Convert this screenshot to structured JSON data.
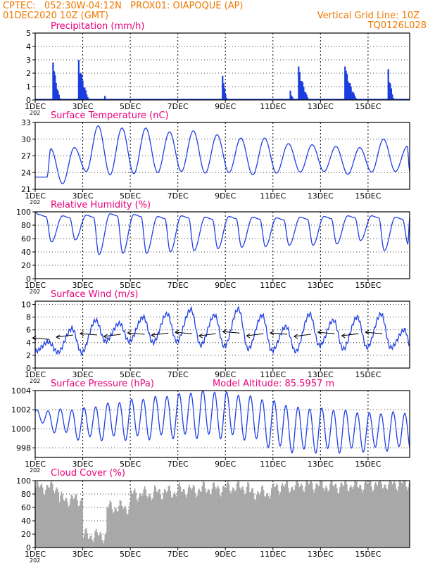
{
  "header": {
    "line1": "CPTEC:   052:30W-04:12N   PROX01: OIAPOQUE (AP)",
    "line2_left": "01DEC2020 10Z (GMT)",
    "line2_right": "Vertical Grid Line: 10Z",
    "line3_right": "TQ0126L028",
    "model_altitude": "Model Altitude: 85.5957 m"
  },
  "colors": {
    "header": "#f07800",
    "title": "#e8007a",
    "line": "#1f3fe6",
    "bar": "#1a3de0",
    "cloud": "#a8a8a8",
    "wind": "#000000"
  },
  "x_axis": {
    "ticks": [
      "1DEC",
      "3DEC",
      "5DEC",
      "7DEC",
      "9DEC",
      "11DEC",
      "13DEC",
      "15DEC"
    ],
    "year": "202"
  },
  "chart_data": [
    {
      "type": "bar",
      "title": "Precipitation (mm/h)",
      "ylim": [
        0,
        5
      ],
      "yticks": [
        "0",
        "1",
        "2",
        "3",
        "4",
        "5"
      ],
      "events": [
        {
          "start": 0.72,
          "peak": 2.8,
          "dur": 0.35
        },
        {
          "start": 1.8,
          "peak": 3.0,
          "dur": 0.45
        },
        {
          "start": 2.9,
          "peak": 0.3,
          "dur": 0.05
        },
        {
          "start": 7.85,
          "peak": 1.8,
          "dur": 0.22
        },
        {
          "start": 10.7,
          "peak": 0.7,
          "dur": 0.15
        },
        {
          "start": 11.05,
          "peak": 2.5,
          "dur": 0.45
        },
        {
          "start": 13.0,
          "peak": 2.5,
          "dur": 0.55
        },
        {
          "start": 14.82,
          "peak": 2.3,
          "dur": 0.25
        }
      ]
    },
    {
      "type": "line",
      "title": "Surface Temperature (nC)",
      "ylim": [
        21,
        33
      ],
      "yticks": [
        "21",
        "24",
        "27",
        "30",
        "33"
      ],
      "base": 23.2,
      "peaks": [
        28.3,
        28.5,
        32.4,
        32.0,
        32.0,
        31.3,
        31.5,
        30.8,
        30.2,
        30.2,
        29.2,
        29.0,
        28.7,
        28.5,
        30.0,
        28.7
      ],
      "mins": [
        22.0,
        24.2,
        23.6,
        23.8,
        24.0,
        24.2,
        23.9,
        24.0,
        23.6,
        23.9,
        24.1,
        24.2,
        23.7,
        24.1,
        24.2,
        24.0
      ]
    },
    {
      "type": "line",
      "title": "Relative Humidity (%)",
      "ylim": [
        0,
        100
      ],
      "yticks": [
        "0",
        "20",
        "40",
        "60",
        "80",
        "100"
      ],
      "highs": [
        96,
        94,
        95,
        97,
        96,
        93,
        94,
        92,
        93,
        92,
        91,
        92,
        93,
        94,
        94,
        92
      ],
      "lows": [
        55,
        58,
        36,
        38,
        38,
        40,
        42,
        45,
        47,
        48,
        50,
        50,
        52,
        57,
        42,
        52
      ]
    },
    {
      "type": "line",
      "title": "Surface Wind (m/s)",
      "ylim": [
        0,
        10.5
      ],
      "yticks": [
        "0",
        "2",
        "4",
        "6",
        "8",
        "10"
      ],
      "peaks": [
        4.1,
        6.2,
        7.5,
        7.0,
        8.0,
        8.5,
        9.2,
        8.3,
        9.3,
        8.3,
        6.5,
        8.5,
        7.5,
        8.0,
        8.5,
        6.0
      ],
      "mins": [
        2.5,
        2.4,
        4.2,
        4.2,
        4.0,
        4.2,
        3.6,
        3.4,
        3.0,
        2.7,
        2.6,
        3.5,
        3.0,
        3.2,
        3.2,
        4.0
      ],
      "arrow_y": [
        4.5,
        5.2,
        5.2,
        5.3,
        5.3,
        5.5,
        5.4,
        5.4,
        5.5,
        5.4,
        5.3,
        5.3,
        5.4,
        5.4,
        5.4
      ]
    },
    {
      "type": "line",
      "title": "Surface Pressure (hPa)",
      "ylim": [
        997,
        1004
      ],
      "yticks": [
        "998",
        "1000",
        "1002",
        "1004"
      ],
      "mean": [
        1001.3,
        1000.8,
        1000.5,
        1000.8,
        1001.0,
        1001.2,
        1001.4,
        1001.6,
        1001.5,
        1001.2,
        1000.5,
        999.9,
        999.9,
        999.8,
        999.7,
        999.8
      ],
      "amp": [
        0.6,
        1.2,
        1.6,
        1.8,
        2.0,
        2.1,
        2.2,
        2.4,
        2.3,
        2.2,
        2.4,
        2.3,
        2.2,
        2.1,
        1.9,
        1.9
      ]
    },
    {
      "type": "bar",
      "title": "Cloud Cover (%)",
      "ylim": [
        0,
        100
      ],
      "yticks": [
        "0",
        "20",
        "40",
        "60",
        "80",
        "100"
      ],
      "day_avg": [
        90,
        72,
        18,
        60,
        80,
        83,
        86,
        88,
        90,
        82,
        91,
        94,
        92,
        93,
        95,
        96
      ]
    }
  ]
}
